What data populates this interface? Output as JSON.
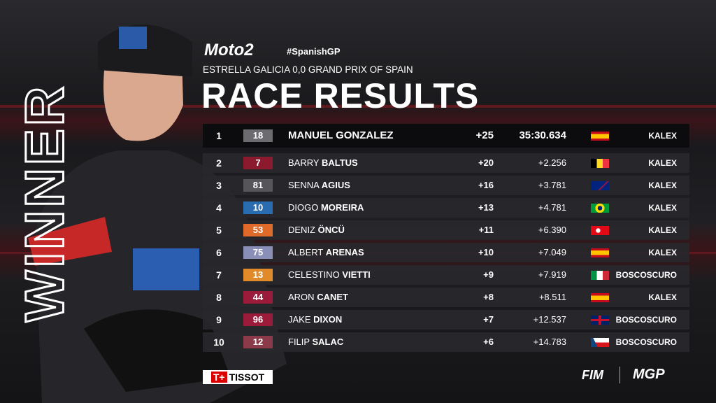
{
  "header": {
    "series": "Moto2",
    "hashtag": "#SpanishGP",
    "event": "ESTRELLA GALICIA 0,0 GRAND PRIX OF SPAIN",
    "title": "RACE RESULTS"
  },
  "side_text": "WINNER",
  "sponsor": "TISSOT",
  "footer": {
    "left": "FIM",
    "right": "MGP"
  },
  "results": [
    {
      "pos": 1,
      "number": 18,
      "number_color": "#6b6b70",
      "first": "MANUEL",
      "last": "GONZALEZ",
      "points": "+25",
      "time": "35:30.634",
      "team": "KALEX"
    },
    {
      "pos": 2,
      "number": 7,
      "number_color": "#8b1a2e",
      "first": "BARRY",
      "last": "BALTUS",
      "points": "+20",
      "time": "+2.256",
      "team": "KALEX"
    },
    {
      "pos": 3,
      "number": 81,
      "number_color": "#55555a",
      "first": "SENNA",
      "last": "AGIUS",
      "points": "+16",
      "time": "+3.781",
      "team": "KALEX"
    },
    {
      "pos": 4,
      "number": 10,
      "number_color": "#2a6cb0",
      "first": "DIOGO",
      "last": "MOREIRA",
      "points": "+13",
      "time": "+4.781",
      "team": "KALEX"
    },
    {
      "pos": 5,
      "number": 53,
      "number_color": "#e06a2a",
      "first": "DENIZ",
      "last": "ÖNCÜ",
      "points": "+11",
      "time": "+6.390",
      "team": "KALEX"
    },
    {
      "pos": 6,
      "number": 75,
      "number_color": "#8a8fb8",
      "first": "ALBERT",
      "last": "ARENAS",
      "points": "+10",
      "time": "+7.049",
      "team": "KALEX"
    },
    {
      "pos": 7,
      "number": 13,
      "number_color": "#e08a2a",
      "first": "CELESTINO",
      "last": "VIETTI",
      "points": "+9",
      "time": "+7.919",
      "team": "BOSCOSCURO"
    },
    {
      "pos": 8,
      "number": 44,
      "number_color": "#9b1b3a",
      "first": "ARON",
      "last": "CANET",
      "points": "+8",
      "time": "+8.511",
      "team": "KALEX"
    },
    {
      "pos": 9,
      "number": 96,
      "number_color": "#9b1b3a",
      "first": "JAKE",
      "last": "DIXON",
      "points": "+7",
      "time": "+12.537",
      "team": "BOSCOSCURO"
    },
    {
      "pos": 10,
      "number": 12,
      "number_color": "#8b3a4a",
      "first": "FILIP",
      "last": "SALAC",
      "points": "+6",
      "time": "+14.783",
      "team": "BOSCOSCURO"
    }
  ]
}
